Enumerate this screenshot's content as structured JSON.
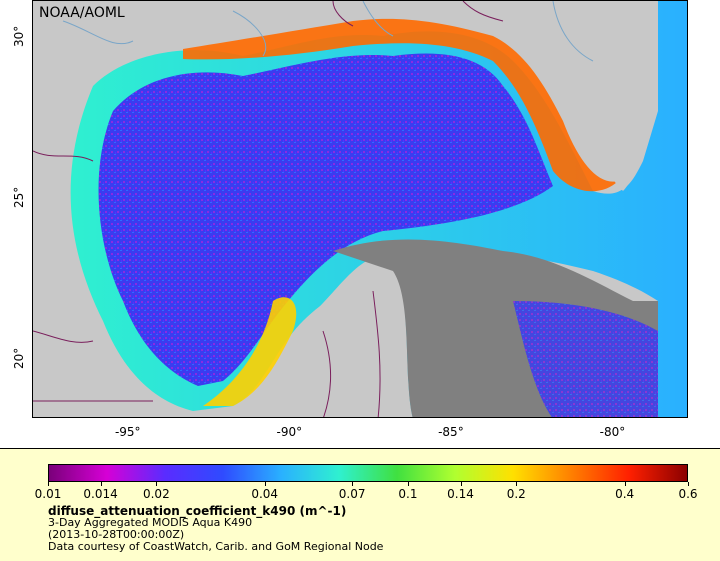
{
  "map": {
    "credit": "NOAA/AOML",
    "x_ticks": [
      {
        "label": "-95°",
        "lon": -95
      },
      {
        "label": "-90°",
        "lon": -90
      },
      {
        "label": "-85°",
        "lon": -85
      },
      {
        "label": "-80°",
        "lon": -80
      }
    ],
    "y_ticks": [
      {
        "label": "30°",
        "lat": 30
      },
      {
        "label": "25°",
        "lat": 25
      },
      {
        "label": "20°",
        "lat": 20
      }
    ],
    "colors": {
      "land": "#c8c8c8",
      "no_data": "#808080",
      "border": "#7a1f5c",
      "river": "#7aa6c8"
    }
  },
  "legend": {
    "scale": "log",
    "tick_labels": [
      "0.01",
      "0.014",
      "0.02",
      "0.04",
      "0.07",
      "0.1",
      "0.14",
      "0.2",
      "0.4",
      "0.6"
    ],
    "tick_values": [
      0.01,
      0.014,
      0.02,
      0.04,
      0.07,
      0.1,
      0.14,
      0.2,
      0.4,
      0.6
    ],
    "variable": "diffuse_attenuation_coefficient_k490 (m^-1)",
    "dataset": "3-Day Aggregated MODIS Aqua K490",
    "time": "(2013-10-28T00:00:00Z)",
    "courtesy": "Data courtesy of CoastWatch, Carib. and GoM Regional Node",
    "colormap": [
      "#7a007a",
      "#d600d6",
      "#5a2cff",
      "#2f4bff",
      "#2ab0ff",
      "#2ff0d0",
      "#40e040",
      "#b0ff30",
      "#ffe000",
      "#ff8000",
      "#ff2000",
      "#8b0000"
    ]
  }
}
